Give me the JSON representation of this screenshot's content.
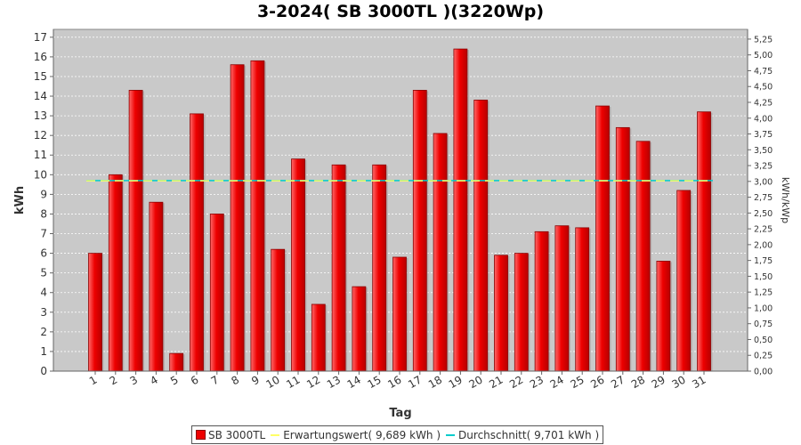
{
  "title": "3-2024( SB 3000TL )(3220Wp)",
  "colors": {
    "bar": "#ee0000",
    "bar_edge": "#8b0000",
    "plot_bg": "#c9c9c9",
    "grid": "#ffffff",
    "expectation": "#ffff66",
    "average": "#00cccc"
  },
  "chart_data": {
    "type": "bar",
    "xlabel": "Tag",
    "ylabel": "kWh",
    "y2label": "kWh/kWp",
    "ylim": [
      0,
      17.4
    ],
    "yticks": [
      0,
      1,
      2,
      3,
      4,
      5,
      6,
      7,
      8,
      9,
      10,
      11,
      12,
      13,
      14,
      15,
      16,
      17
    ],
    "y2ticks": [
      "0,00",
      "0,25",
      "0,50",
      "0,75",
      "1,00",
      "1,25",
      "1,50",
      "1,75",
      "2,00",
      "2,25",
      "2,50",
      "2,75",
      "3,00",
      "3,25",
      "3,50",
      "3,75",
      "4,00",
      "4,25",
      "4,50",
      "4,75",
      "5,00",
      "5,25"
    ],
    "y2tick_values": [
      0,
      0.25,
      0.5,
      0.75,
      1.0,
      1.25,
      1.5,
      1.75,
      2.0,
      2.25,
      2.5,
      2.75,
      3.0,
      3.25,
      3.5,
      3.75,
      4.0,
      4.25,
      4.5,
      4.75,
      5.0,
      5.25
    ],
    "kwp": 3.22,
    "categories": [
      "1",
      "2",
      "3",
      "4",
      "5",
      "6",
      "7",
      "8",
      "9",
      "10",
      "11",
      "12",
      "13",
      "14",
      "15",
      "16",
      "17",
      "18",
      "19",
      "20",
      "21",
      "22",
      "23",
      "24",
      "25",
      "26",
      "27",
      "28",
      "29",
      "30",
      "31"
    ],
    "series": [
      {
        "name": "SB 3000TL",
        "values": [
          6.0,
          10.0,
          14.3,
          8.6,
          0.9,
          13.1,
          8.0,
          15.6,
          15.8,
          6.2,
          10.8,
          3.4,
          10.5,
          4.3,
          10.5,
          5.8,
          14.3,
          12.1,
          16.4,
          13.8,
          5.9,
          6.0,
          7.1,
          7.4,
          7.3,
          13.5,
          12.4,
          11.7,
          5.6,
          9.2,
          13.2
        ]
      }
    ],
    "lines": [
      {
        "name": "Erwartungswert",
        "value": 9.689
      },
      {
        "name": "Durchschnitt",
        "value": 9.701
      }
    ],
    "grid": true,
    "legend_position": "bottom"
  },
  "legend": {
    "bar_label": "SB 3000TL",
    "expectation_label": "Erwartungswert( 9,689 kWh )",
    "average_label": "Durchschnitt( 9,701 kWh )"
  }
}
